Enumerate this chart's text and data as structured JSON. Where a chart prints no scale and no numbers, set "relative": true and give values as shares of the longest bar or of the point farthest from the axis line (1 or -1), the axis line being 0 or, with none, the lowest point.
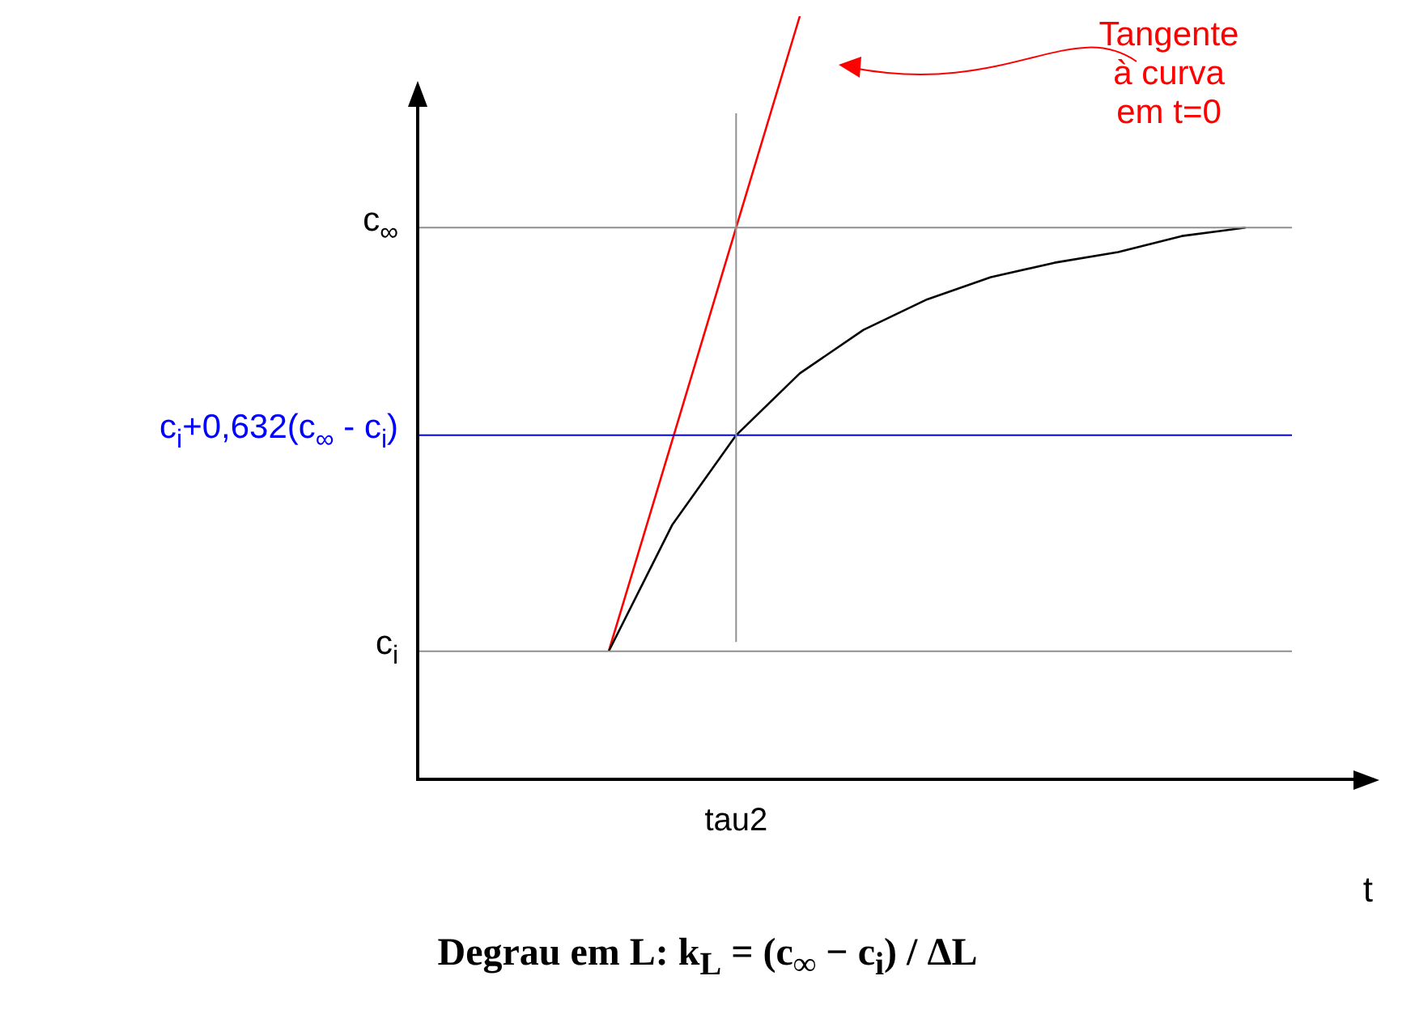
{
  "chart_data": {
    "type": "line",
    "relative": true,
    "xlabel": "t",
    "marker": "none",
    "categories": [
      null,
      null,
      null,
      null,
      null,
      null,
      null,
      null,
      null,
      null,
      null,
      null,
      null,
      null,
      null,
      null
    ],
    "series": [
      {
        "color": "#000000",
        "values": [
          null,
          null,
          null,
          0.168,
          0.334,
          0.451,
          0.532,
          0.589,
          0.629,
          0.658,
          0.677,
          0.691,
          0.712,
          0.723,
          null,
          null
        ]
      },
      {
        "color": "#ff0000",
        "values": [
          null,
          null,
          null,
          0.168,
          0.445,
          0.723,
          1.0,
          null,
          null,
          null,
          null,
          null,
          null,
          null,
          null,
          null
        ]
      }
    ],
    "ref_lines": [
      {
        "axis": "y",
        "value": 0.723,
        "label": "c$_{∞}$"
      },
      {
        "axis": "y",
        "value": 0.451,
        "label": "c$_{i}$+0,632(c$_{∞}$ - c$_{i}$)",
        "color": "#0000ff"
      },
      {
        "axis": "y",
        "value": 0.168,
        "label": "c$_{i}$"
      }
    ],
    "annotations": [
      "Tangente\nà curva\nem t=0",
      "tau2",
      "Degrau em L: k$_{L}$ = (c$_{∞}$ − c$_{i}$) / ΔL"
    ]
  }
}
